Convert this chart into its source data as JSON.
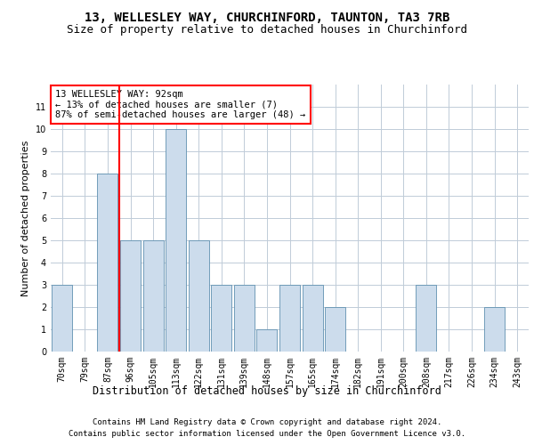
{
  "title1": "13, WELLESLEY WAY, CHURCHINFORD, TAUNTON, TA3 7RB",
  "title2": "Size of property relative to detached houses in Churchinford",
  "xlabel": "Distribution of detached houses by size in Churchinford",
  "ylabel": "Number of detached properties",
  "categories": [
    "70sqm",
    "79sqm",
    "87sqm",
    "96sqm",
    "105sqm",
    "113sqm",
    "122sqm",
    "131sqm",
    "139sqm",
    "148sqm",
    "157sqm",
    "165sqm",
    "174sqm",
    "182sqm",
    "191sqm",
    "200sqm",
    "208sqm",
    "217sqm",
    "226sqm",
    "234sqm",
    "243sqm"
  ],
  "values": [
    3,
    0,
    8,
    5,
    5,
    10,
    5,
    3,
    3,
    1,
    3,
    3,
    2,
    0,
    0,
    0,
    3,
    0,
    0,
    2,
    0
  ],
  "bar_color": "#ccdcec",
  "bar_edge_color": "#6090b0",
  "annotation_text": "13 WELLESLEY WAY: 92sqm\n← 13% of detached houses are smaller (7)\n87% of semi-detached houses are larger (48) →",
  "annotation_box_color": "white",
  "annotation_box_edge_color": "red",
  "ylim": [
    0,
    12
  ],
  "yticks": [
    0,
    1,
    2,
    3,
    4,
    5,
    6,
    7,
    8,
    9,
    10,
    11
  ],
  "footer1": "Contains HM Land Registry data © Crown copyright and database right 2024.",
  "footer2": "Contains public sector information licensed under the Open Government Licence v3.0.",
  "bg_color": "white",
  "grid_color": "#c0ccd8",
  "title1_fontsize": 10,
  "title2_fontsize": 9,
  "xlabel_fontsize": 8.5,
  "ylabel_fontsize": 8,
  "tick_fontsize": 7,
  "annotation_fontsize": 7.5,
  "footer_fontsize": 6.5,
  "highlight_line_index": 2
}
